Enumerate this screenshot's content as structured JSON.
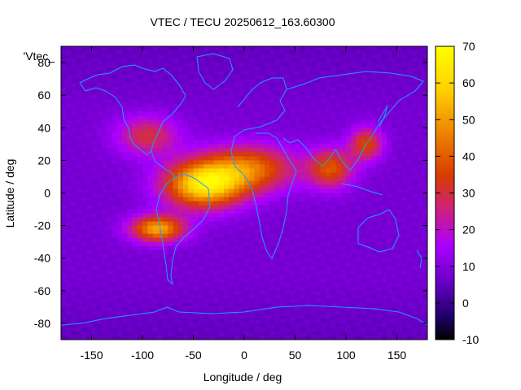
{
  "chart_data": {
    "type": "heatmap",
    "title": "VTEC / TECU 20250612_163.60300",
    "xlabel": "Longitude / deg",
    "ylabel": "Latitude / deg",
    "legend_label": "'Vtec_",
    "xlim": [
      -180,
      180
    ],
    "ylim": [
      -90,
      90
    ],
    "x_ticks": [
      -150,
      -100,
      -50,
      0,
      50,
      100,
      150
    ],
    "y_ticks": [
      -80,
      -60,
      -40,
      -20,
      0,
      20,
      40,
      60,
      80
    ],
    "colorbar": {
      "range": [
        -10,
        70
      ],
      "ticks": [
        -10,
        0,
        10,
        20,
        30,
        40,
        50,
        60,
        70
      ],
      "colormap": "gnuplot-pm3d-7-5-15",
      "colors": [
        "#000000",
        "#6a00c8",
        "#aa00ff",
        "#cc2080",
        "#d83c00",
        "#ee8000",
        "#ffd000",
        "#ffff00"
      ]
    },
    "coastline_color": "#1e9bff",
    "grid": false,
    "vtec_grid": {
      "lon_step": 5,
      "lat_step": 2.5,
      "background_tecu": 8,
      "features": [
        {
          "name": "equatorial-crest-south-america",
          "lon": -40,
          "lat": 5,
          "peak_tecu": 62
        },
        {
          "name": "southern-crest-south-pacific",
          "lon": -85,
          "lat": -22,
          "peak_tecu": 52
        },
        {
          "name": "atlantic-africa-band",
          "lon": 5,
          "lat": 15,
          "peak_tecu": 42
        },
        {
          "name": "india-bay-of-bengal",
          "lon": 85,
          "lat": 15,
          "peak_tecu": 38
        },
        {
          "name": "east-asia",
          "lon": 120,
          "lat": 30,
          "peak_tecu": 36
        },
        {
          "name": "north-america",
          "lon": -95,
          "lat": 35,
          "peak_tecu": 30
        }
      ]
    }
  }
}
